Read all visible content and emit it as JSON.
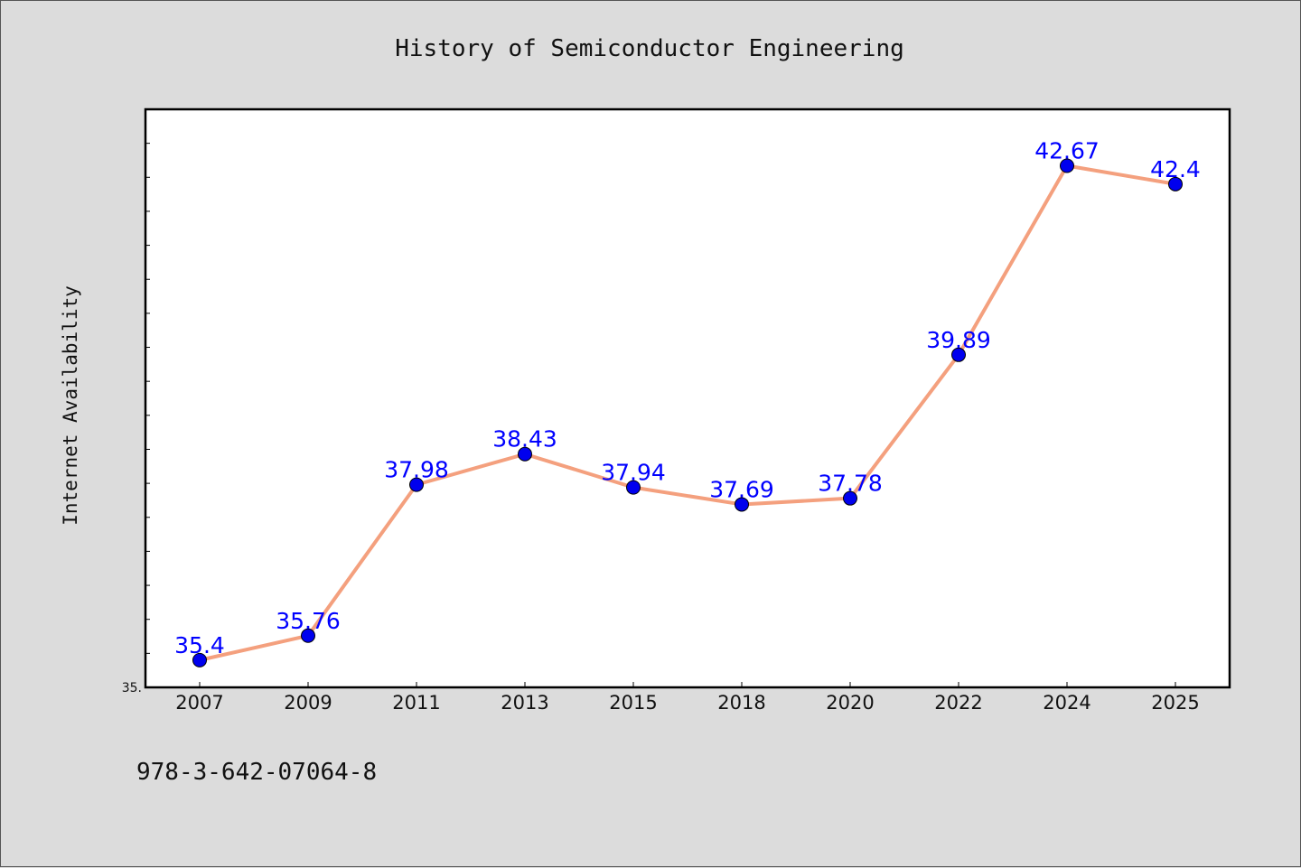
{
  "chart_data": {
    "type": "line",
    "title": "History of Semiconductor Engineering",
    "xlabel": "",
    "ylabel": "Internet Availability",
    "categories": [
      "2007",
      "2009",
      "2011",
      "2013",
      "2015",
      "2018",
      "2020",
      "2022",
      "2024",
      "2025"
    ],
    "series": [
      {
        "values": [
          35.4,
          35.76,
          37.98,
          38.43,
          37.94,
          37.69,
          37.78,
          39.89,
          42.67,
          42.4
        ],
        "labels": [
          "35.4",
          "35.76",
          "37.98",
          "38.43",
          "37.94",
          "37.69",
          "37.78",
          "39.89",
          "42.67",
          "42.4"
        ],
        "line_color": "#f4a07e",
        "marker_color": "#0000ee"
      }
    ],
    "ylim": [
      35.0,
      43.5
    ],
    "y_tick_labels": [
      "35."
    ],
    "grid": false,
    "legend": "none"
  },
  "footer": {
    "text": "978-3-642-07064-8"
  },
  "colors": {
    "background": "#dcdcdc",
    "plot_background": "#ffffff",
    "label_color": "#0000ff"
  }
}
